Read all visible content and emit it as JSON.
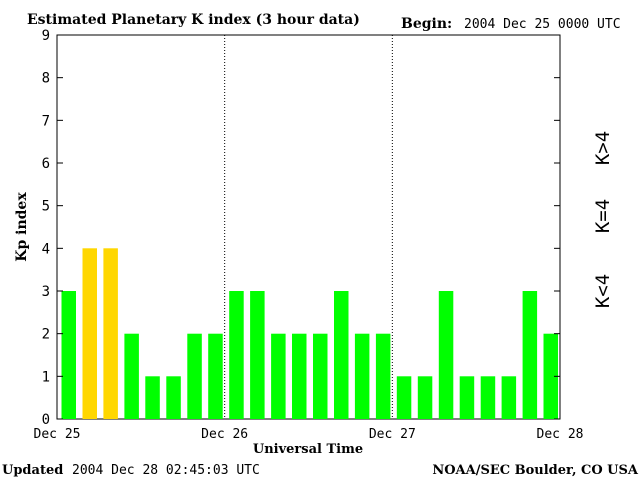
{
  "header": {
    "title": "Estimated Planetary K index (3 hour data)",
    "begin_label": "Begin:",
    "begin_value": "2004 Dec 25 0000 UTC"
  },
  "footer": {
    "updated_label": "Updated",
    "updated_value": "2004 Dec 28 02:45:03 UTC",
    "source": "NOAA/SEC Boulder, CO USA"
  },
  "legend": {
    "high": "K>4",
    "equal": "K=4",
    "low": "K<4"
  },
  "colors": {
    "low": "#00ff00",
    "equal": "#ffd700",
    "high": "#ff2000"
  },
  "chart_data": {
    "type": "bar",
    "title": "Estimated Planetary K index (3 hour data)",
    "xlabel": "Universal Time",
    "ylabel": "Kp index",
    "ylim": [
      0,
      9
    ],
    "yticks": [
      "0",
      "1",
      "2",
      "3",
      "4",
      "5",
      "6",
      "7",
      "8",
      "9"
    ],
    "xticks": [
      "Dec 25",
      "Dec 26",
      "Dec 27",
      "Dec 28"
    ],
    "grid": "dotted vertical day separators",
    "values": [
      3,
      4,
      4,
      2,
      1,
      1,
      2,
      2,
      3,
      3,
      2,
      2,
      2,
      3,
      2,
      2,
      1,
      1,
      3,
      1,
      1,
      1,
      3,
      2
    ]
  }
}
